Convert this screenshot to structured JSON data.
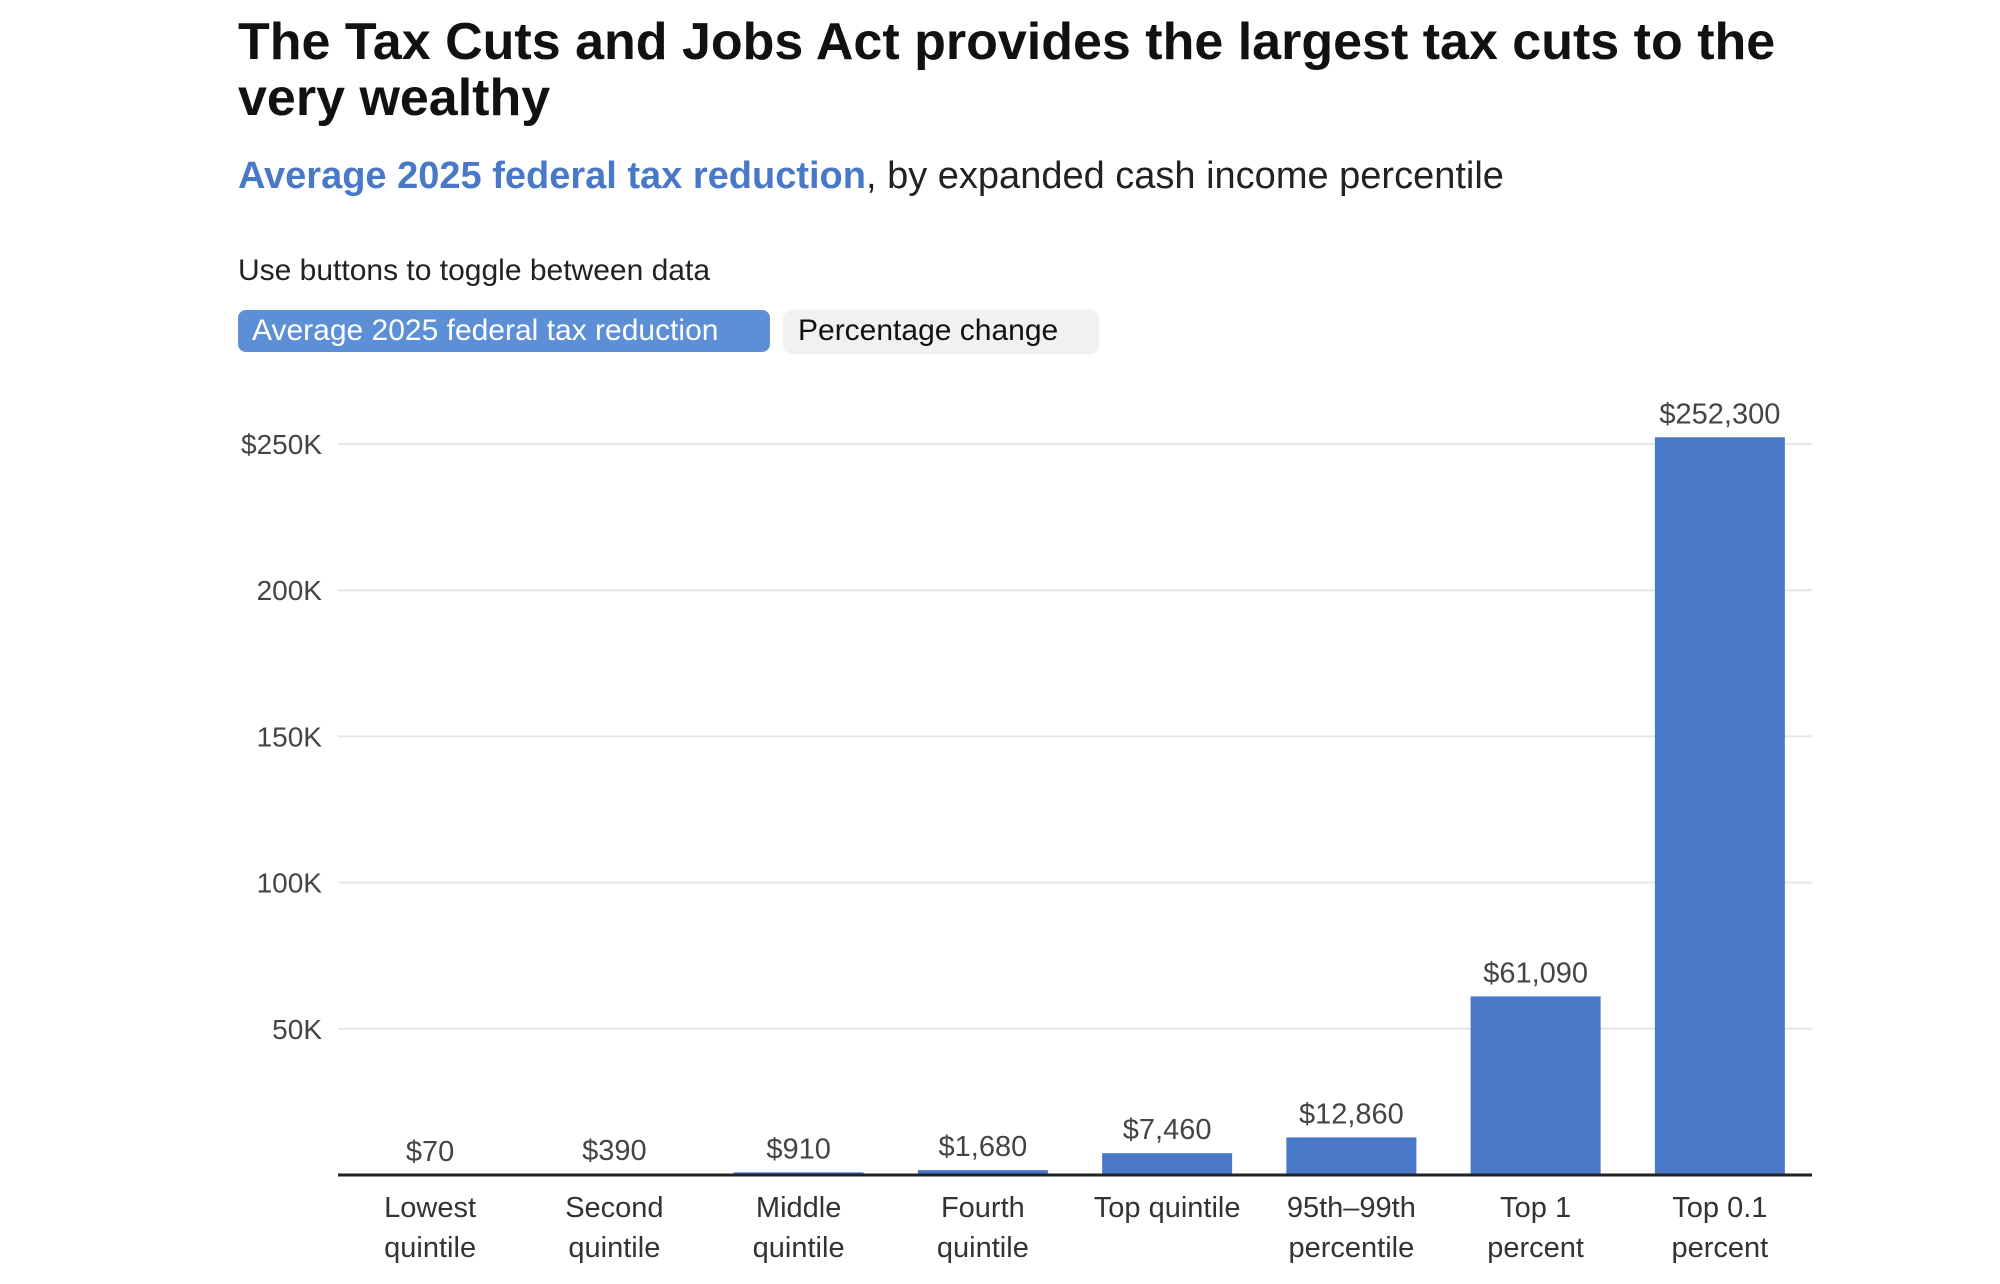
{
  "header": {
    "title": "The Tax Cuts and Jobs Act provides the largest tax cuts to the very wealthy",
    "subtitle_accent": "Average 2025 federal tax reduction",
    "subtitle_rest": ", by expanded cash income percentile"
  },
  "controls": {
    "hint": "Use buttons to toggle between data",
    "buttons": [
      {
        "label": "Average 2025 federal tax reduction",
        "active": true
      },
      {
        "label": "Percentage change",
        "active": false
      }
    ]
  },
  "colors": {
    "bar": "#4a78c8",
    "accent": "#4a78c8"
  },
  "chart_data": {
    "type": "bar",
    "categories": [
      [
        "Lowest",
        "quintile"
      ],
      [
        "Second",
        "quintile"
      ],
      [
        "Middle",
        "quintile"
      ],
      [
        "Fourth",
        "quintile"
      ],
      [
        "Top quintile"
      ],
      [
        "95th–99th",
        "percentile"
      ],
      [
        "Top 1",
        "percent"
      ],
      [
        "Top 0.1",
        "percent"
      ]
    ],
    "values": [
      70,
      390,
      910,
      1680,
      7460,
      12860,
      61090,
      252300
    ],
    "data_labels": [
      "$70",
      "$390",
      "$910",
      "$1,680",
      "$7,460",
      "$12,860",
      "$61,090",
      "$252,300"
    ],
    "ylim": [
      0,
      250000
    ],
    "yticks": [
      {
        "value": 50000,
        "label": "50K"
      },
      {
        "value": 100000,
        "label": "100K"
      },
      {
        "value": 150000,
        "label": "150K"
      },
      {
        "value": 200000,
        "label": "200K"
      },
      {
        "value": 250000,
        "label": "$250K"
      }
    ],
    "grid": true,
    "legend": "none"
  }
}
